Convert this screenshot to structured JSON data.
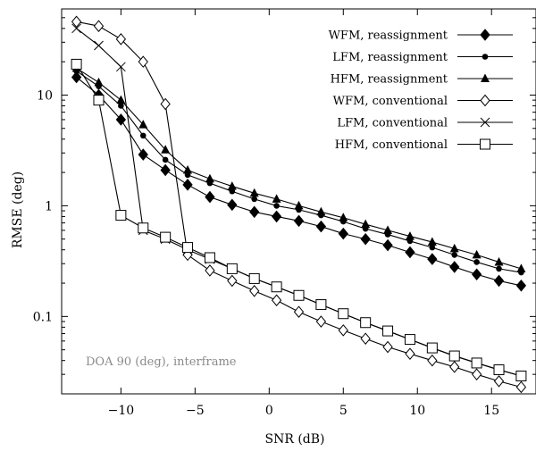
{
  "chart_data": {
    "type": "line",
    "xlabel": "SNR (dB)",
    "ylabel": "RMSE (deg)",
    "xlim": [
      -14,
      18
    ],
    "ylim": [
      0.02,
      60
    ],
    "y_scale": "log",
    "x_ticks": [
      -10,
      -5,
      0,
      5,
      10,
      15
    ],
    "x_tick_labels": [
      "−10",
      "−5",
      "0",
      "5",
      "10",
      "15"
    ],
    "y_ticks": [
      0.1,
      1,
      10
    ],
    "y_tick_labels": [
      "0.1",
      "1",
      "10"
    ],
    "grid": false,
    "legend_position": "top-right",
    "annotation": "DOA 90 (deg), interframe",
    "x": [
      -13,
      -11.5,
      -10,
      -8.5,
      -7,
      -5.5,
      -4,
      -2.5,
      -1,
      0.5,
      2,
      3.5,
      5,
      6.5,
      8,
      9.5,
      11,
      12.5,
      14,
      15.5,
      17
    ],
    "series": [
      {
        "name": "WFM, reassignment",
        "marker": "diamond-filled",
        "color": "#000000",
        "values": [
          14.5,
          10.0,
          6.0,
          2.9,
          2.1,
          1.55,
          1.2,
          1.02,
          0.88,
          0.8,
          0.73,
          0.65,
          0.56,
          0.5,
          0.44,
          0.38,
          0.33,
          0.28,
          0.24,
          0.21,
          0.19
        ]
      },
      {
        "name": "LFM, reassignment",
        "marker": "circle-filled",
        "color": "#000000",
        "values": [
          16.5,
          12.0,
          8.0,
          4.3,
          2.6,
          1.9,
          1.6,
          1.35,
          1.15,
          1.0,
          0.92,
          0.82,
          0.72,
          0.62,
          0.55,
          0.48,
          0.42,
          0.36,
          0.31,
          0.27,
          0.25
        ]
      },
      {
        "name": "HFM, reassignment",
        "marker": "triangle-filled",
        "color": "#000000",
        "values": [
          17.5,
          13.0,
          9.0,
          5.4,
          3.2,
          2.1,
          1.75,
          1.5,
          1.3,
          1.15,
          1.0,
          0.88,
          0.78,
          0.68,
          0.6,
          0.53,
          0.47,
          0.41,
          0.36,
          0.31,
          0.27
        ]
      },
      {
        "name": "WFM, conventional",
        "marker": "diamond-open",
        "color": "#000000",
        "values": [
          46,
          42,
          32,
          20,
          8.3,
          0.36,
          0.26,
          0.21,
          0.17,
          0.14,
          0.11,
          0.09,
          0.075,
          0.063,
          0.053,
          0.046,
          0.04,
          0.035,
          0.03,
          0.026,
          0.023
        ]
      },
      {
        "name": "LFM, conventional",
        "marker": "cross",
        "color": "#000000",
        "values": [
          40,
          28,
          18,
          0.6,
          0.5,
          0.4,
          0.33,
          0.27,
          0.22,
          0.185,
          0.155,
          0.128,
          0.106,
          0.088,
          0.074,
          0.062,
          0.052,
          0.044,
          0.038,
          0.033,
          0.029
        ]
      },
      {
        "name": "HFM, conventional",
        "marker": "square-open",
        "color": "#000000",
        "values": [
          19,
          9.0,
          0.82,
          0.63,
          0.52,
          0.42,
          0.34,
          0.27,
          0.22,
          0.185,
          0.155,
          0.128,
          0.106,
          0.088,
          0.074,
          0.062,
          0.052,
          0.044,
          0.038,
          0.033,
          0.029
        ]
      }
    ]
  }
}
